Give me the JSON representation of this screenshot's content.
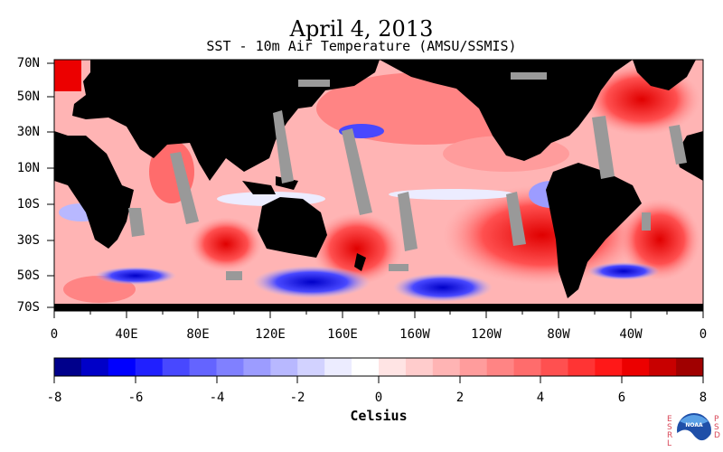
{
  "title": "April 4, 2013",
  "subtitle": "SST - 10m Air Temperature (AMSU/SSMIS)",
  "map": {
    "lat_labels": [
      "70N",
      "50N",
      "30N",
      "10N",
      "10S",
      "30S",
      "50S",
      "70S"
    ],
    "lon_labels": [
      "0",
      "40E",
      "80E",
      "120E",
      "160E",
      "160W",
      "120W",
      "80W",
      "40W",
      "0"
    ],
    "land_color": "#000000",
    "missing_data_color": "#999999"
  },
  "colorbar": {
    "unit_label": "Celsius",
    "tick_labels": [
      "-8",
      "-6",
      "-4",
      "-2",
      "0",
      "2",
      "4",
      "6",
      "8"
    ],
    "range": [
      -8,
      8
    ],
    "colors": [
      "#00008b",
      "#0000c8",
      "#0000ff",
      "#2020ff",
      "#4848ff",
      "#6464ff",
      "#8080ff",
      "#9c9cff",
      "#b8b8ff",
      "#d2d2ff",
      "#ececff",
      "#ffffff",
      "#ffe4e4",
      "#ffcccc",
      "#ffb4b4",
      "#ff9c9c",
      "#ff8484",
      "#ff6c6c",
      "#ff5050",
      "#ff3434",
      "#ff1818",
      "#ec0000",
      "#c80000",
      "#a00000"
    ]
  },
  "logo": {
    "left_text": "ESRL",
    "right_text": "PSD",
    "center_text": "NOAA"
  }
}
